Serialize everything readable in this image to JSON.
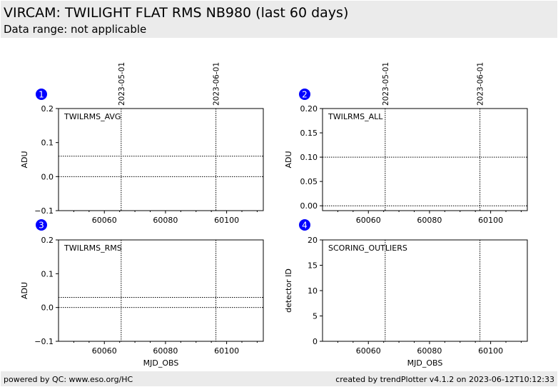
{
  "header": {
    "title": "VIRCAM: TWILIGHT FLAT RMS NB980 (last 60 days)",
    "subtitle": "Data range: not applicable"
  },
  "footer": {
    "left": "powered by QC: www.eso.org/HC",
    "right": "created by trendPlotter v4.1.2 on 2023-06-12T10:12:33"
  },
  "chart_data": [
    {
      "type": "scatter",
      "panel_number": "1",
      "label": "TWILRMS_AVG",
      "ylabel": "ADU",
      "xlabel": "",
      "xlim": [
        60045,
        60112
      ],
      "ylim": [
        -0.1,
        0.2
      ],
      "yticks": [
        -0.1,
        0.0,
        0.1,
        0.2
      ],
      "ytick_labels": [
        "−0.1",
        "0.0",
        "0.1",
        "0.2"
      ],
      "xticks": [
        60060,
        60080,
        60100
      ],
      "ytick_minor": [],
      "date_markers": [
        {
          "x": 60065.5,
          "label": "2023-05-01"
        },
        {
          "x": 60096.5,
          "label": "2023-06-01"
        }
      ],
      "hlines": [
        0.0,
        0.06
      ],
      "points": []
    },
    {
      "type": "scatter",
      "panel_number": "2",
      "label": "TWILRMS_ALL",
      "ylabel": "ADU",
      "xlabel": "",
      "xlim": [
        60045,
        60112
      ],
      "ylim": [
        -0.01,
        0.2
      ],
      "yticks": [
        0.0,
        0.05,
        0.1,
        0.15,
        0.2
      ],
      "ytick_labels": [
        "0.00",
        "0.05",
        "0.10",
        "0.15",
        "0.20"
      ],
      "xticks": [
        60060,
        60080,
        60100
      ],
      "date_markers": [
        {
          "x": 60065.5,
          "label": "2023-05-01"
        },
        {
          "x": 60096.5,
          "label": "2023-06-01"
        }
      ],
      "hlines": [
        0.0,
        0.1
      ],
      "points": []
    },
    {
      "type": "scatter",
      "panel_number": "3",
      "label": "TWILRMS_RMS",
      "ylabel": "ADU",
      "xlabel": "MJD_OBS",
      "xlim": [
        60045,
        60112
      ],
      "ylim": [
        -0.1,
        0.2
      ],
      "yticks": [
        -0.1,
        0.0,
        0.1,
        0.2
      ],
      "ytick_labels": [
        "−0.1",
        "0.0",
        "0.1",
        "0.2"
      ],
      "xticks": [
        60060,
        60080,
        60100
      ],
      "date_markers": [
        {
          "x": 60065.5,
          "label": ""
        },
        {
          "x": 60096.5,
          "label": ""
        }
      ],
      "hlines": [
        0.0,
        0.03
      ],
      "points": []
    },
    {
      "type": "scatter",
      "panel_number": "4",
      "label": "SCORING_OUTLIERS",
      "ylabel": "detector ID",
      "xlabel": "MJD_OBS",
      "xlim": [
        60045,
        60112
      ],
      "ylim": [
        0,
        20
      ],
      "yticks": [
        0,
        5,
        10,
        15,
        20
      ],
      "ytick_labels": [
        "0",
        "5",
        "10",
        "15",
        "20"
      ],
      "xticks": [
        60060,
        60080,
        60100
      ],
      "date_markers": [
        {
          "x": 60065.5,
          "label": ""
        },
        {
          "x": 60096.5,
          "label": ""
        }
      ],
      "hlines": [],
      "points": []
    }
  ],
  "colors": {
    "badge": "#0000ff",
    "background": "#ffffff",
    "frame": "#ebebeb"
  }
}
